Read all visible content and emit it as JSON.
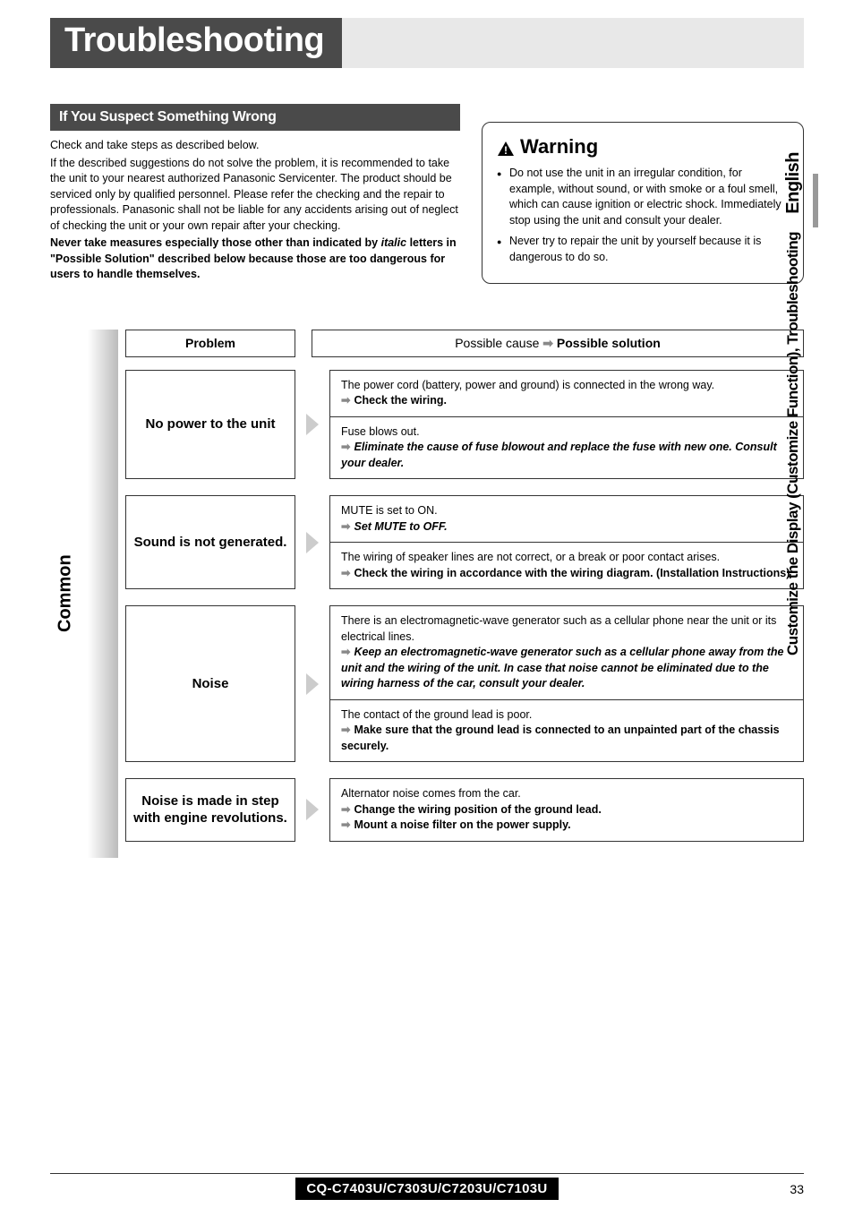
{
  "header": {
    "title": "Troubleshooting"
  },
  "side_tabs": {
    "lang": "English",
    "section": "Customize the Display (Customize Function), Troubleshooting"
  },
  "section_label": "If You Suspect Something Wrong",
  "intro": {
    "line1": "Check and take steps as described below.",
    "para": "If the described suggestions do not solve the problem, it is recommended to take the unit to your nearest authorized Panasonic Servicenter. The product should be serviced only by qualified personnel. Please refer the checking and the repair to professionals. Panasonic shall not be liable for any accidents arising out of neglect of checking the unit or your own repair after your checking.",
    "bold_pre": "Never take measures especially those other than indicated by ",
    "bold_italic": "italic",
    "bold_post": " letters in \"Possible Solution\" described below because those are too dangerous for users to handle themselves."
  },
  "warning": {
    "title": "Warning",
    "items": [
      "Do not use the unit in an irregular condition, for example, without sound, or with smoke or a foul smell, which can cause ignition or electric shock. Immediately stop using the unit and consult your dealer.",
      "Never try to repair the unit by yourself because it is dangerous to do so."
    ]
  },
  "table": {
    "header_problem": "Problem",
    "header_cause_pre": "Possible cause ",
    "header_cause_post": " Possible solution",
    "category": "Common",
    "rows": [
      {
        "problem": "No power to the unit",
        "solutions": [
          {
            "cause": "The power cord (battery, power and ground) is connected in the wrong way.",
            "action": "Check the wiring.",
            "style": "bold"
          },
          {
            "cause": "Fuse blows out.",
            "action": "Eliminate the cause of fuse blowout and replace the fuse with new one. Consult your dealer.",
            "style": "italic"
          }
        ]
      },
      {
        "problem": "Sound is not generated.",
        "solutions": [
          {
            "cause": "MUTE is set to ON.",
            "action": "Set MUTE to OFF.",
            "style": "italic"
          },
          {
            "cause": "The wiring of speaker lines are not correct, or a break or poor contact arises.",
            "action": "Check the wiring in accordance with the wiring diagram. (Installation Instructions)",
            "style": "bold"
          }
        ]
      },
      {
        "problem": "Noise",
        "solutions": [
          {
            "cause": "There is an electromagnetic-wave generator such as a cellular phone near the unit or its electrical lines.",
            "action": "Keep an electromagnetic-wave generator such as a cellular phone away from the unit and the wiring of the unit. In case that noise cannot be eliminated due to the wiring harness of the car, consult your dealer.",
            "style": "italic"
          },
          {
            "cause": "The contact of the ground lead is poor.",
            "action": "Make sure that the ground lead is connected to an unpainted part of the chassis securely.",
            "style": "bold"
          }
        ]
      },
      {
        "problem": "Noise is made in step with engine revolutions.",
        "solutions": [
          {
            "cause": "Alternator noise comes from the car.",
            "action": "Change the wiring position of the ground lead.",
            "action2": "Mount a noise filter on the power supply.",
            "style": "bold"
          }
        ]
      }
    ]
  },
  "footer": {
    "model": "CQ-C7403U/C7303U/C7203U/C7103U",
    "page": "33"
  },
  "colors": {
    "header_bg": "#4a4a4a",
    "arrow": "#888888"
  }
}
